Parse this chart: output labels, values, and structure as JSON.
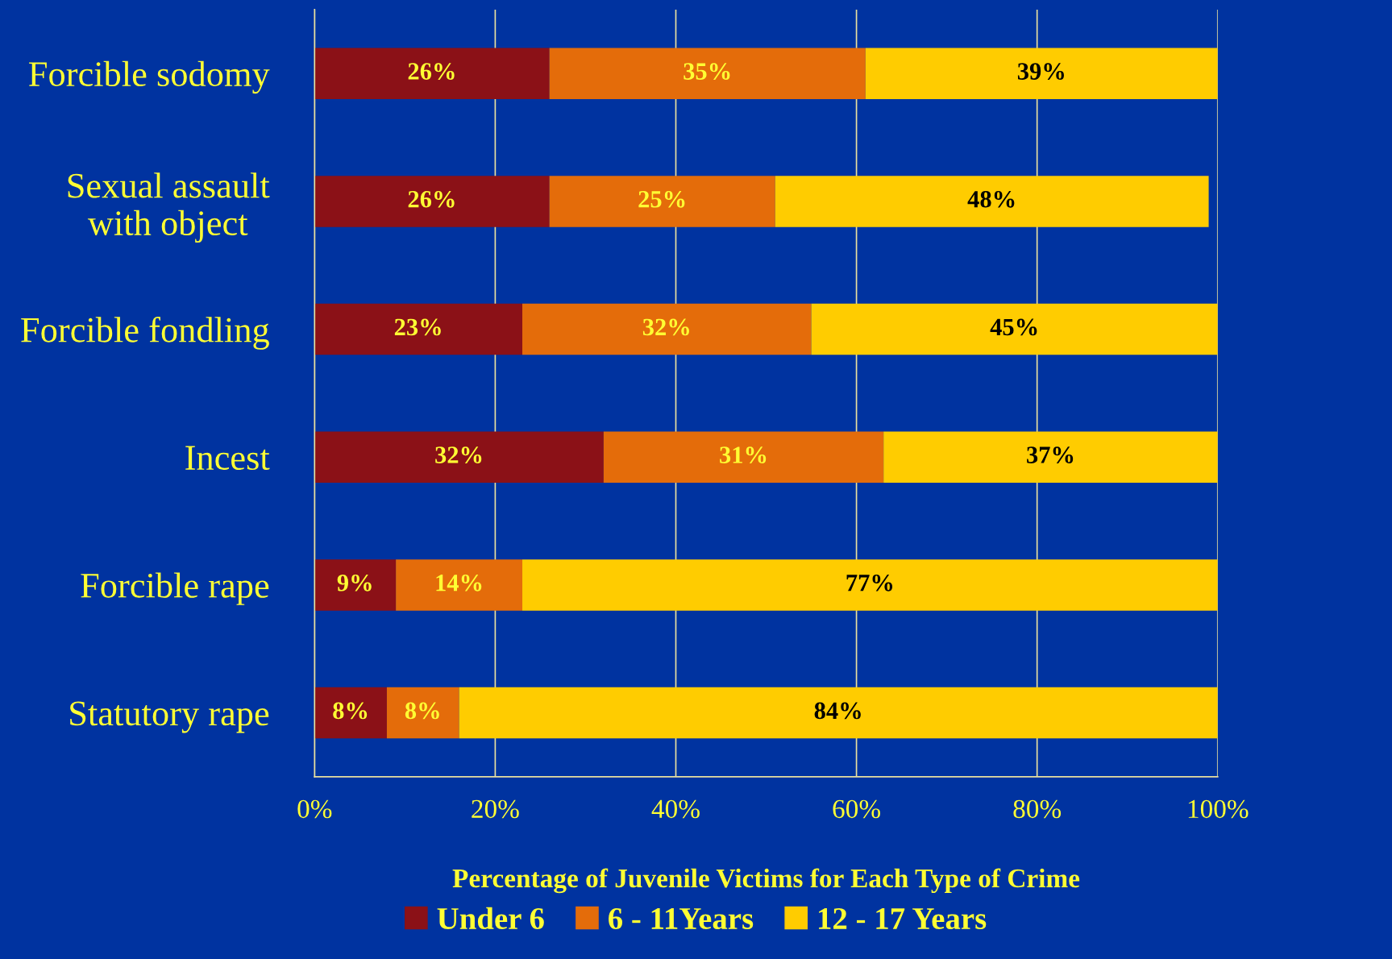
{
  "chart_data": {
    "type": "bar",
    "orientation": "horizontal",
    "stacked": true,
    "categories": [
      "Forcible sodomy",
      "Sexual assault\nwith object",
      "Forcible fondling",
      "Incest",
      "Forcible rape",
      "Statutory rape"
    ],
    "series": [
      {
        "name": "Under 6",
        "color": "#8b1117",
        "values": [
          26,
          26,
          23,
          32,
          9,
          8
        ],
        "value_labels": [
          "26%",
          "26%",
          "23%",
          "32%",
          "9%",
          "8%"
        ]
      },
      {
        "name": "6 - 11Years",
        "color": "#e46c0a",
        "values": [
          35,
          25,
          32,
          31,
          14,
          8
        ],
        "value_labels": [
          "35%",
          "25%",
          "32%",
          "31%",
          "14%",
          "8%"
        ]
      },
      {
        "name": "12 - 17 Years",
        "color": "#ffcc00",
        "values": [
          39,
          48,
          45,
          37,
          77,
          84
        ],
        "value_labels": [
          "39%",
          "48%",
          "45%",
          "37%",
          "77%",
          "84%"
        ]
      }
    ],
    "xlabel": "Percentage of Juvenile Victims for Each Type of Crime",
    "xlim": [
      0,
      100
    ],
    "xticks": [
      {
        "value": 0,
        "label": "0%"
      },
      {
        "value": 20,
        "label": "20%"
      },
      {
        "value": 40,
        "label": "40%"
      },
      {
        "value": 60,
        "label": "60%"
      },
      {
        "value": 80,
        "label": "80%"
      },
      {
        "value": 100,
        "label": "100%"
      }
    ],
    "grid": "x",
    "legend": "bottom"
  }
}
